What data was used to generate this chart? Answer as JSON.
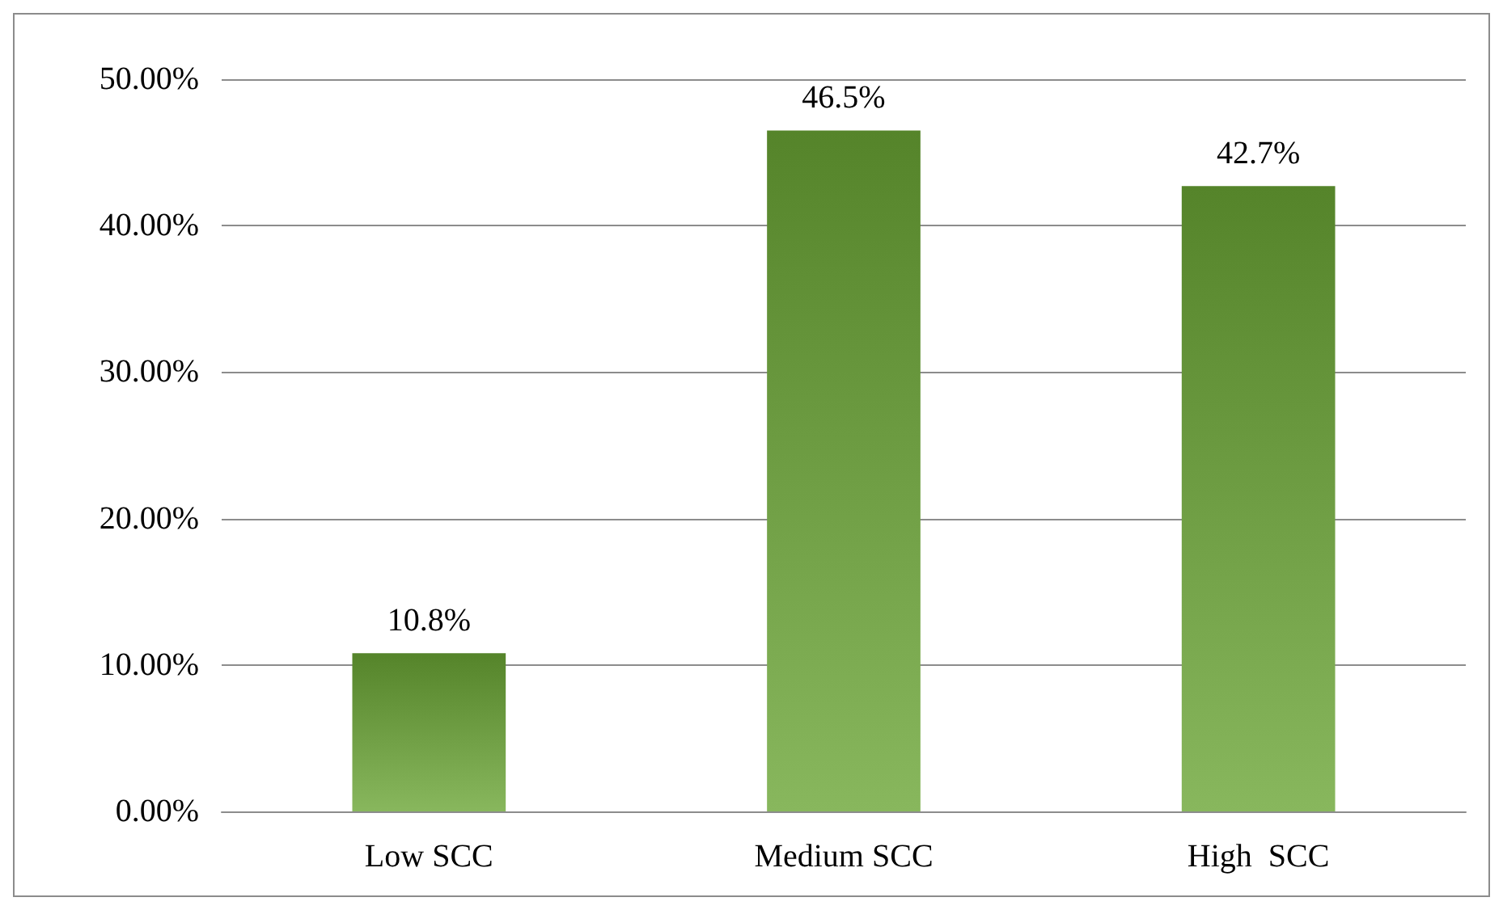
{
  "chart_data": {
    "type": "bar",
    "categories": [
      "Low SCC",
      "Medium SCC",
      "High  SCC"
    ],
    "values": [
      10.8,
      46.5,
      42.7
    ],
    "value_labels": [
      "10.8%",
      "46.5%",
      "42.7%"
    ],
    "color": "#6aa535",
    "ylim": [
      0,
      50
    ],
    "yticks": [
      {
        "value": 0,
        "label": "0.00%"
      },
      {
        "value": 10,
        "label": "10.00%"
      },
      {
        "value": 20,
        "label": "20.00%"
      },
      {
        "value": 30,
        "label": "30.00%"
      },
      {
        "value": 40,
        "label": "40.00%"
      },
      {
        "value": 50,
        "label": "50.00%"
      }
    ],
    "grid": "y"
  }
}
